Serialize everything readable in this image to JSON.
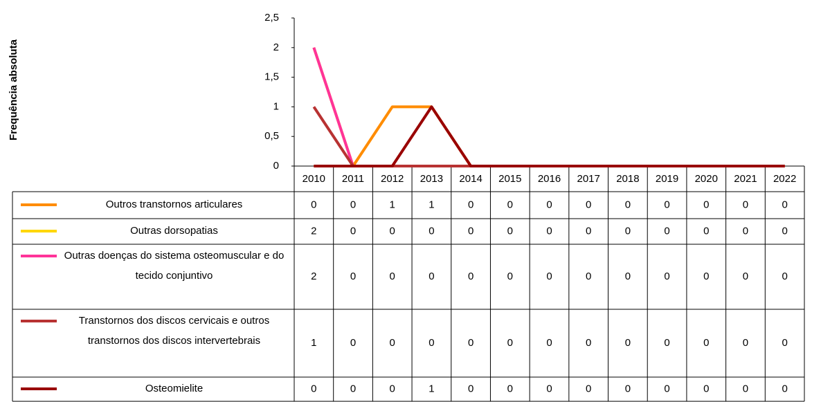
{
  "chart_data": {
    "type": "line",
    "y_label": "Frequência absoluta",
    "categories": [
      "2010",
      "2011",
      "2012",
      "2013",
      "2014",
      "2015",
      "2016",
      "2017",
      "2018",
      "2019",
      "2020",
      "2021",
      "2022"
    ],
    "series": [
      {
        "name": "Outros transtornos articulares",
        "color": "#FF8C00",
        "values": [
          0,
          0,
          1,
          1,
          0,
          0,
          0,
          0,
          0,
          0,
          0,
          0,
          0
        ]
      },
      {
        "name": "Outras dorsopatias",
        "color": "#FFD700",
        "values": [
          2,
          0,
          0,
          0,
          0,
          0,
          0,
          0,
          0,
          0,
          0,
          0,
          0
        ]
      },
      {
        "name": "Outras doenças do sistema osteomuscular e do tecido conjuntivo",
        "color": "#FF3399",
        "values": [
          2,
          0,
          0,
          0,
          0,
          0,
          0,
          0,
          0,
          0,
          0,
          0,
          0
        ]
      },
      {
        "name": "Transtornos dos discos cervicais e outros transtornos dos discos intervertebrais",
        "color": "#B83232",
        "values": [
          1,
          0,
          0,
          0,
          0,
          0,
          0,
          0,
          0,
          0,
          0,
          0,
          0
        ]
      },
      {
        "name": "Osteomielite",
        "color": "#990000",
        "values": [
          0,
          0,
          0,
          1,
          0,
          0,
          0,
          0,
          0,
          0,
          0,
          0,
          0
        ]
      }
    ],
    "ylim": [
      0,
      2.5
    ],
    "yticks": [
      0,
      {
        "value": 0.5,
        "label": "0,5"
      },
      1,
      {
        "value": 1.5,
        "label": "1,5"
      },
      2,
      {
        "value": 2.5,
        "label": "2,5"
      }
    ],
    "grid": false
  }
}
